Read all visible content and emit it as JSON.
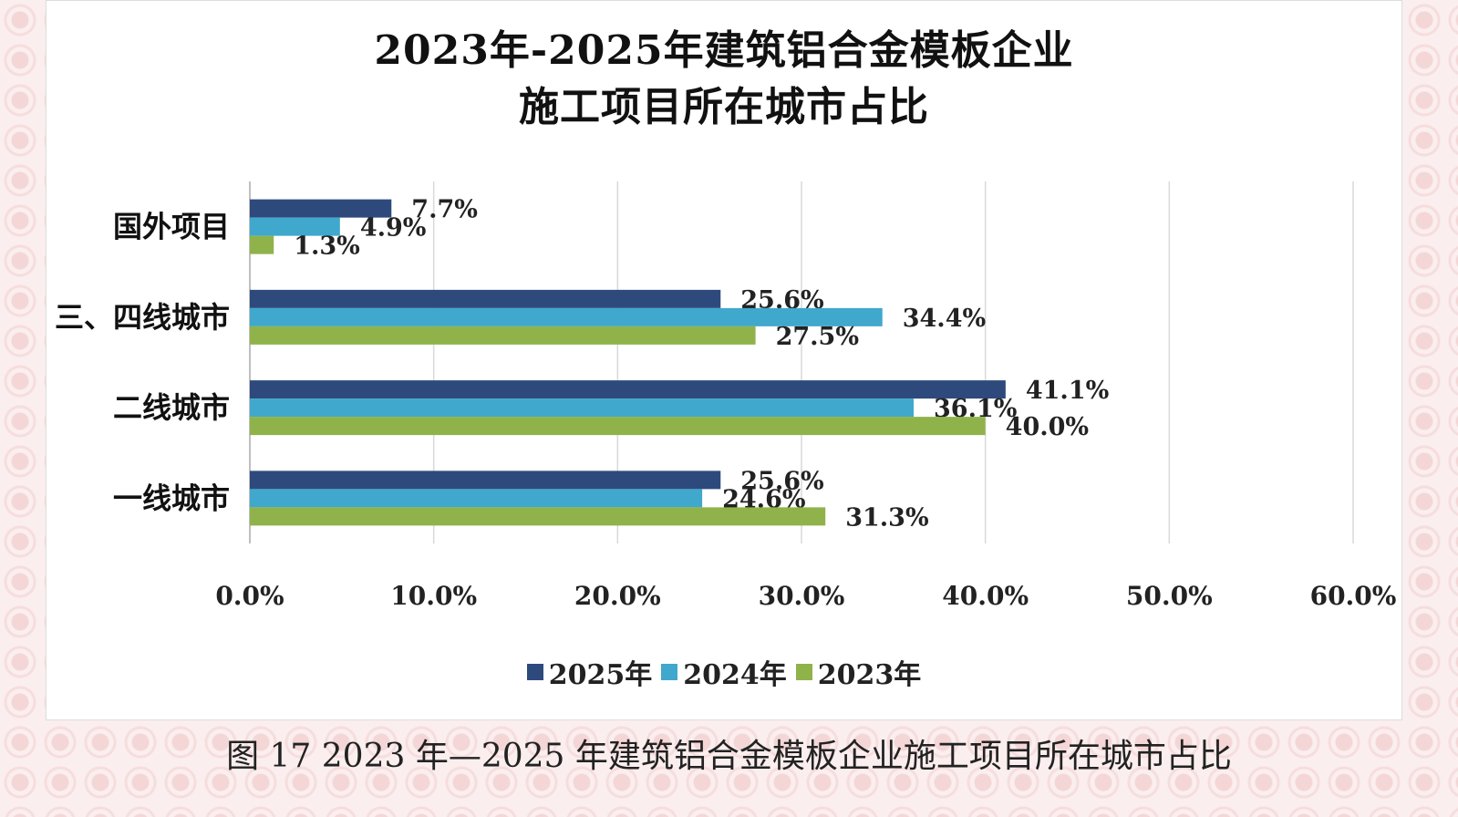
{
  "chart_data": {
    "type": "bar",
    "orientation": "horizontal",
    "title": "2023年-2025年建筑铝合金模板企业\n施工项目所在城市占比",
    "categories": [
      "国外项目",
      "三、四线城市",
      "二线城市",
      "一线城市"
    ],
    "series": [
      {
        "name": "2025年",
        "color": "#2e4a7d",
        "values": [
          7.7,
          25.6,
          41.1,
          25.6
        ]
      },
      {
        "name": "2024年",
        "color": "#3fa8cc",
        "values": [
          4.9,
          34.4,
          36.1,
          24.6
        ]
      },
      {
        "name": "2023年",
        "color": "#8fb34a",
        "values": [
          1.3,
          27.5,
          40.0,
          31.3
        ]
      }
    ],
    "xlim": [
      0,
      60
    ],
    "xticks": [
      "0.0%",
      "10.0%",
      "20.0%",
      "30.0%",
      "40.0%",
      "50.0%",
      "60.0%"
    ],
    "value_suffix": "%",
    "grid": true,
    "legend_position": "bottom"
  },
  "title_line1": "2023年-2025年建筑铝合金模板企业",
  "title_line2": "施工项目所在城市占比",
  "caption": "图 17 2023 年—2025 年建筑铝合金模板企业施工项目所在城市占比"
}
